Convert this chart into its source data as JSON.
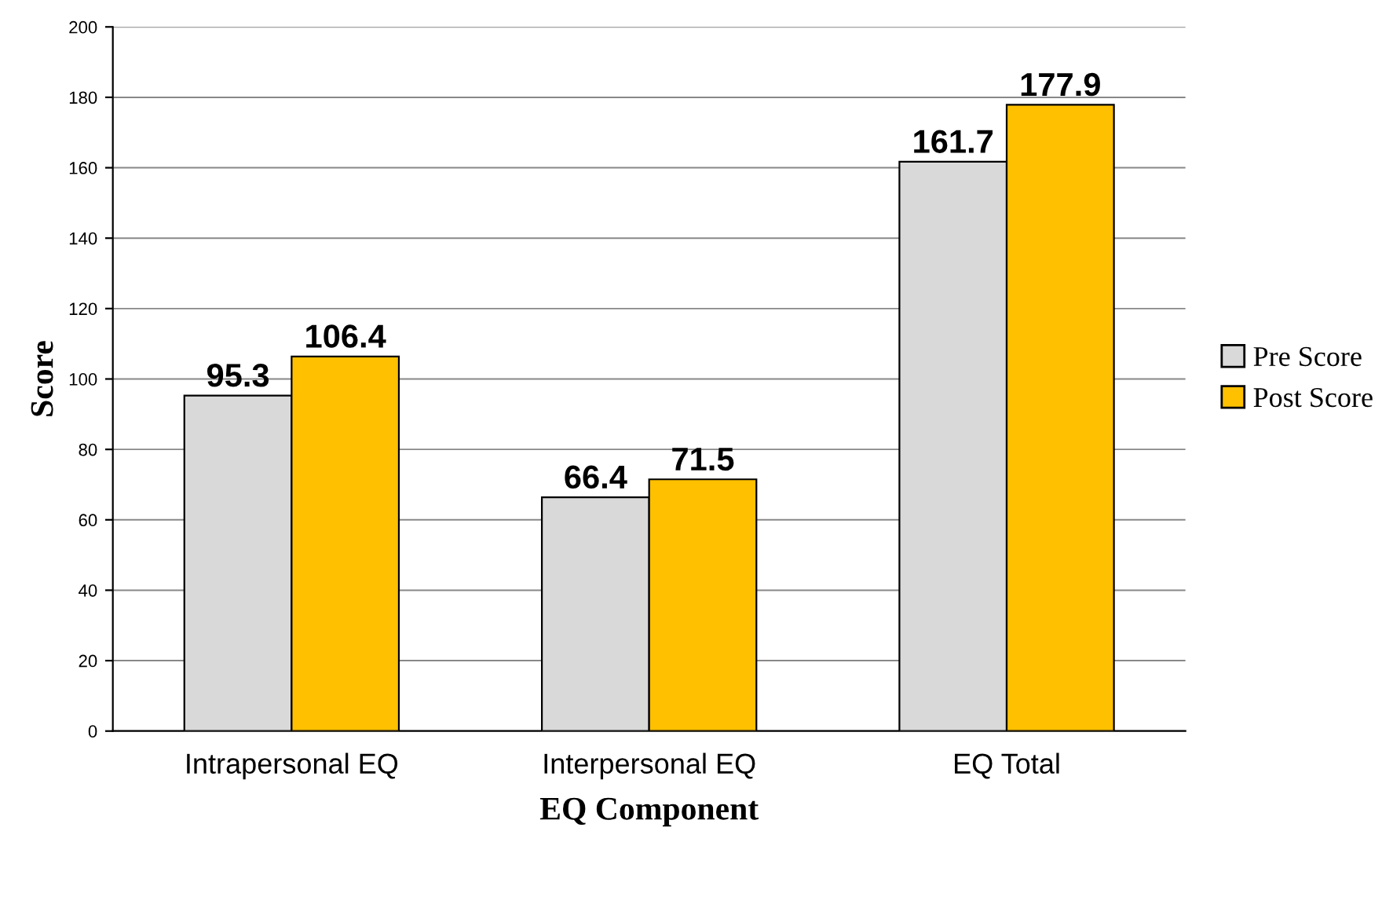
{
  "chart_data": {
    "type": "bar",
    "xlabel": "EQ Component",
    "ylabel": "Score",
    "categories": [
      "Intrapersonal EQ",
      "Interpersonal EQ",
      "EQ Total"
    ],
    "series": [
      {
        "name": "Pre Score",
        "color": "#d9d9d9",
        "values": [
          95.3,
          66.4,
          161.7
        ]
      },
      {
        "name": "Post Score",
        "color": "#ffc000",
        "values": [
          106.4,
          71.5,
          177.9
        ]
      }
    ],
    "ylim": [
      0,
      200
    ],
    "yticks": [
      0,
      20,
      40,
      60,
      80,
      100,
      120,
      140,
      160,
      180,
      200
    ],
    "grid": "y",
    "legend": "right",
    "data_labels": true
  }
}
